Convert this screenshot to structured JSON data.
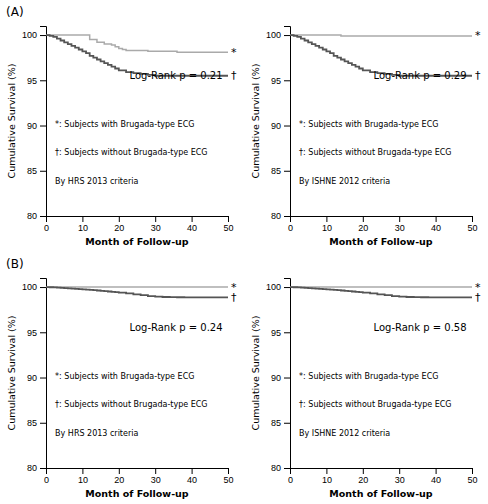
{
  "chart_data": [
    {
      "type": "step",
      "title": "(A)",
      "xlabel": "Month of Follow-up",
      "ylabel": "Cumulative Survival (%)",
      "xlim": [
        0,
        50
      ],
      "ylim": [
        80,
        101
      ],
      "xticks": [
        0,
        10,
        20,
        30,
        40,
        50
      ],
      "yticks": [
        80,
        85,
        90,
        95,
        100
      ],
      "grid": false,
      "series": [
        {
          "color": "#aaaaaa",
          "x": [
            0,
            2,
            4,
            6,
            8,
            10,
            12,
            14,
            16,
            18,
            19,
            20,
            21,
            22,
            24,
            26,
            28,
            30,
            32,
            34,
            36,
            38,
            40,
            42,
            44,
            46,
            48,
            50
          ],
          "values": [
            100,
            100,
            100,
            100,
            100,
            100,
            99.5,
            99.2,
            99.0,
            98.9,
            98.7,
            98.5,
            98.4,
            98.3,
            98.3,
            98.3,
            98.2,
            98.2,
            98.2,
            98.2,
            98.1,
            98.1,
            98.1,
            98.1,
            98.1,
            98.1,
            98.1,
            98.1
          ]
        },
        {
          "color": "#555555",
          "x": [
            0,
            1,
            2,
            3,
            4,
            5,
            6,
            7,
            8,
            9,
            10,
            11,
            12,
            13,
            14,
            15,
            16,
            17,
            18,
            19,
            20,
            22,
            24,
            26,
            28,
            30,
            32,
            34,
            36,
            38,
            40,
            42,
            44,
            46,
            48,
            50
          ],
          "values": [
            100,
            99.9,
            99.8,
            99.6,
            99.4,
            99.2,
            99.0,
            98.8,
            98.6,
            98.4,
            98.2,
            98.0,
            97.7,
            97.5,
            97.3,
            97.1,
            96.9,
            96.7,
            96.5,
            96.3,
            96.1,
            95.9,
            95.8,
            95.7,
            95.6,
            95.5,
            95.5,
            95.5,
            95.5,
            95.5,
            95.5,
            95.5,
            95.5,
            95.5,
            95.5,
            95.5
          ]
        }
      ],
      "annotations": [
        {
          "text": "Log-Rank p = 0.21"
        },
        {
          "text": "*: Subjects with Brugada-type ECG"
        },
        {
          "text": "†: Subjects without Brugada-type ECG"
        },
        {
          "text": "By HRS 2013 criteria"
        },
        {
          "text": "*",
          "x": 50,
          "y": 98.1
        },
        {
          "text": "†",
          "x": 50,
          "y": 95.5
        }
      ]
    },
    {
      "type": "step",
      "xlabel": "Month of Follow-up",
      "ylabel": "Cumulative Survival (%)",
      "xlim": [
        0,
        50
      ],
      "ylim": [
        80,
        101
      ],
      "xticks": [
        0,
        10,
        20,
        30,
        40,
        50
      ],
      "yticks": [
        80,
        85,
        90,
        95,
        100
      ],
      "grid": false,
      "series": [
        {
          "color": "#aaaaaa",
          "x": [
            0,
            2,
            4,
            6,
            8,
            10,
            12,
            14,
            16,
            18,
            20,
            22,
            24,
            26,
            28,
            30,
            32,
            34,
            36,
            38,
            40,
            42,
            44,
            46,
            48,
            50
          ],
          "values": [
            100,
            100,
            100,
            100,
            100,
            100,
            100,
            99.9,
            99.9,
            99.9,
            99.9,
            99.9,
            99.9,
            99.9,
            99.9,
            99.9,
            99.9,
            99.9,
            99.9,
            99.9,
            99.9,
            99.9,
            99.9,
            99.9,
            99.9,
            99.9
          ]
        },
        {
          "color": "#555555",
          "x": [
            0,
            1,
            2,
            3,
            4,
            5,
            6,
            7,
            8,
            9,
            10,
            11,
            12,
            13,
            14,
            15,
            16,
            17,
            18,
            19,
            20,
            22,
            24,
            26,
            28,
            30,
            32,
            34,
            36,
            38,
            40,
            42,
            44,
            46,
            48,
            50
          ],
          "values": [
            100,
            99.9,
            99.8,
            99.6,
            99.4,
            99.2,
            99.0,
            98.8,
            98.6,
            98.4,
            98.2,
            98.0,
            97.7,
            97.5,
            97.3,
            97.1,
            96.9,
            96.7,
            96.5,
            96.3,
            96.1,
            95.9,
            95.8,
            95.7,
            95.6,
            95.5,
            95.5,
            95.5,
            95.5,
            95.5,
            95.5,
            95.5,
            95.5,
            95.5,
            95.5,
            95.5
          ]
        }
      ],
      "annotations": [
        {
          "text": "Log-Rank p = 0.29"
        },
        {
          "text": "*: Subjects with Brugada-type ECG"
        },
        {
          "text": "†: Subjects without Brugada-type ECG"
        },
        {
          "text": "By ISHNE 2012 criteria"
        },
        {
          "text": "*",
          "x": 50,
          "y": 99.9
        },
        {
          "text": "†",
          "x": 50,
          "y": 95.5
        }
      ]
    },
    {
      "type": "step",
      "title": "(B)",
      "xlabel": "Month of Follow-up",
      "ylabel": "Cumulative Survival (%)",
      "xlim": [
        0,
        50
      ],
      "ylim": [
        80,
        101
      ],
      "xticks": [
        0,
        10,
        20,
        30,
        40,
        50
      ],
      "yticks": [
        80,
        85,
        90,
        95,
        100
      ],
      "grid": false,
      "series": [
        {
          "color": "#aaaaaa",
          "x": [
            0,
            2,
            4,
            6,
            8,
            10,
            12,
            14,
            16,
            18,
            20,
            22,
            24,
            26,
            28,
            30,
            32,
            34,
            36,
            38,
            40,
            42,
            44,
            46,
            48,
            50
          ],
          "values": [
            100,
            100,
            100,
            100,
            100,
            100,
            100,
            100,
            100,
            100,
            100,
            100,
            100,
            100,
            100,
            100,
            100,
            100,
            100,
            100,
            100,
            100,
            100,
            100,
            100,
            100
          ]
        },
        {
          "color": "#555555",
          "x": [
            0,
            1,
            2,
            3,
            4,
            5,
            6,
            7,
            8,
            9,
            10,
            11,
            12,
            13,
            14,
            15,
            16,
            17,
            18,
            19,
            20,
            22,
            24,
            26,
            28,
            30,
            32,
            34,
            36,
            38,
            40,
            42,
            44,
            46,
            48,
            50
          ],
          "values": [
            100,
            99.98,
            99.96,
            99.93,
            99.91,
            99.88,
            99.85,
            99.83,
            99.8,
            99.77,
            99.74,
            99.71,
            99.68,
            99.65,
            99.62,
            99.58,
            99.55,
            99.51,
            99.47,
            99.43,
            99.38,
            99.3,
            99.2,
            99.1,
            99.0,
            98.95,
            98.9,
            98.88,
            98.87,
            98.86,
            98.86,
            98.86,
            98.86,
            98.86,
            98.86,
            98.86
          ]
        }
      ],
      "annotations": [
        {
          "text": "Log-Rank p = 0.24"
        },
        {
          "text": "*: Subjects with Brugada-type ECG"
        },
        {
          "text": "†: Subjects without Brugada-type ECG"
        },
        {
          "text": "By HRS 2013 criteria"
        },
        {
          "text": "*",
          "x": 50,
          "y": 100.0
        },
        {
          "text": "†",
          "x": 50,
          "y": 98.8
        }
      ]
    },
    {
      "type": "step",
      "xlabel": "Month of Follow-up",
      "ylabel": "Cumulative Survival (%)",
      "xlim": [
        0,
        50
      ],
      "ylim": [
        80,
        101
      ],
      "xticks": [
        0,
        10,
        20,
        30,
        40,
        50
      ],
      "yticks": [
        80,
        85,
        90,
        95,
        100
      ],
      "grid": false,
      "series": [
        {
          "color": "#aaaaaa",
          "x": [
            0,
            2,
            4,
            6,
            8,
            10,
            12,
            14,
            16,
            18,
            20,
            22,
            24,
            26,
            28,
            30,
            32,
            34,
            36,
            38,
            40,
            42,
            44,
            46,
            48,
            50
          ],
          "values": [
            100,
            100,
            100,
            100,
            100,
            100,
            100,
            100,
            100,
            100,
            100,
            100,
            100,
            100,
            100,
            100,
            100,
            100,
            100,
            100,
            100,
            100,
            100,
            100,
            100,
            100
          ]
        },
        {
          "color": "#555555",
          "x": [
            0,
            1,
            2,
            3,
            4,
            5,
            6,
            7,
            8,
            9,
            10,
            11,
            12,
            13,
            14,
            15,
            16,
            17,
            18,
            19,
            20,
            22,
            24,
            26,
            28,
            30,
            32,
            34,
            36,
            38,
            40,
            42,
            44,
            46,
            48,
            50
          ],
          "values": [
            100,
            99.98,
            99.96,
            99.93,
            99.91,
            99.88,
            99.85,
            99.83,
            99.8,
            99.77,
            99.74,
            99.71,
            99.68,
            99.65,
            99.62,
            99.58,
            99.55,
            99.51,
            99.47,
            99.43,
            99.38,
            99.3,
            99.2,
            99.1,
            99.0,
            98.95,
            98.9,
            98.88,
            98.87,
            98.86,
            98.86,
            98.86,
            98.86,
            98.86,
            98.86,
            98.86
          ]
        }
      ],
      "annotations": [
        {
          "text": "Log-Rank p = 0.58"
        },
        {
          "text": "*: Subjects with Brugada-type ECG"
        },
        {
          "text": "†: Subjects without Brugada-type ECG"
        },
        {
          "text": "By ISHNE 2012 criteria"
        },
        {
          "text": "*",
          "x": 50,
          "y": 100.0
        },
        {
          "text": "†",
          "x": 50,
          "y": 98.8
        }
      ]
    }
  ]
}
